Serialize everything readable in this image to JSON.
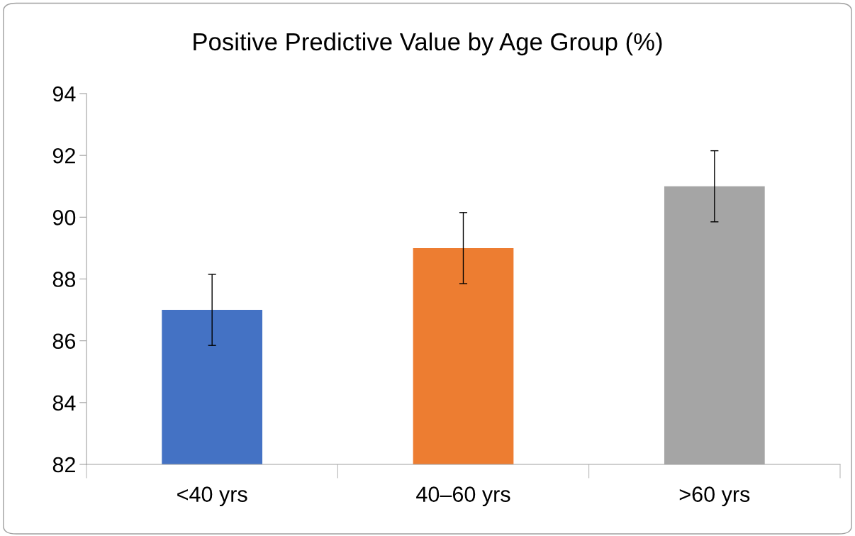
{
  "chart_data": {
    "type": "bar",
    "title": "Positive Predictive Value by Age Group (%)",
    "categories": [
      "<40 yrs",
      "40–60 yrs",
      ">60 yrs"
    ],
    "values": [
      87,
      89,
      91
    ],
    "errors": [
      1.15,
      1.15,
      1.15
    ],
    "colors": [
      "#4472c4",
      "#ed7d31",
      "#a5a5a5"
    ],
    "ylim": [
      82,
      94
    ],
    "yticks": [
      82,
      84,
      86,
      88,
      90,
      92,
      94
    ],
    "grid": false
  }
}
